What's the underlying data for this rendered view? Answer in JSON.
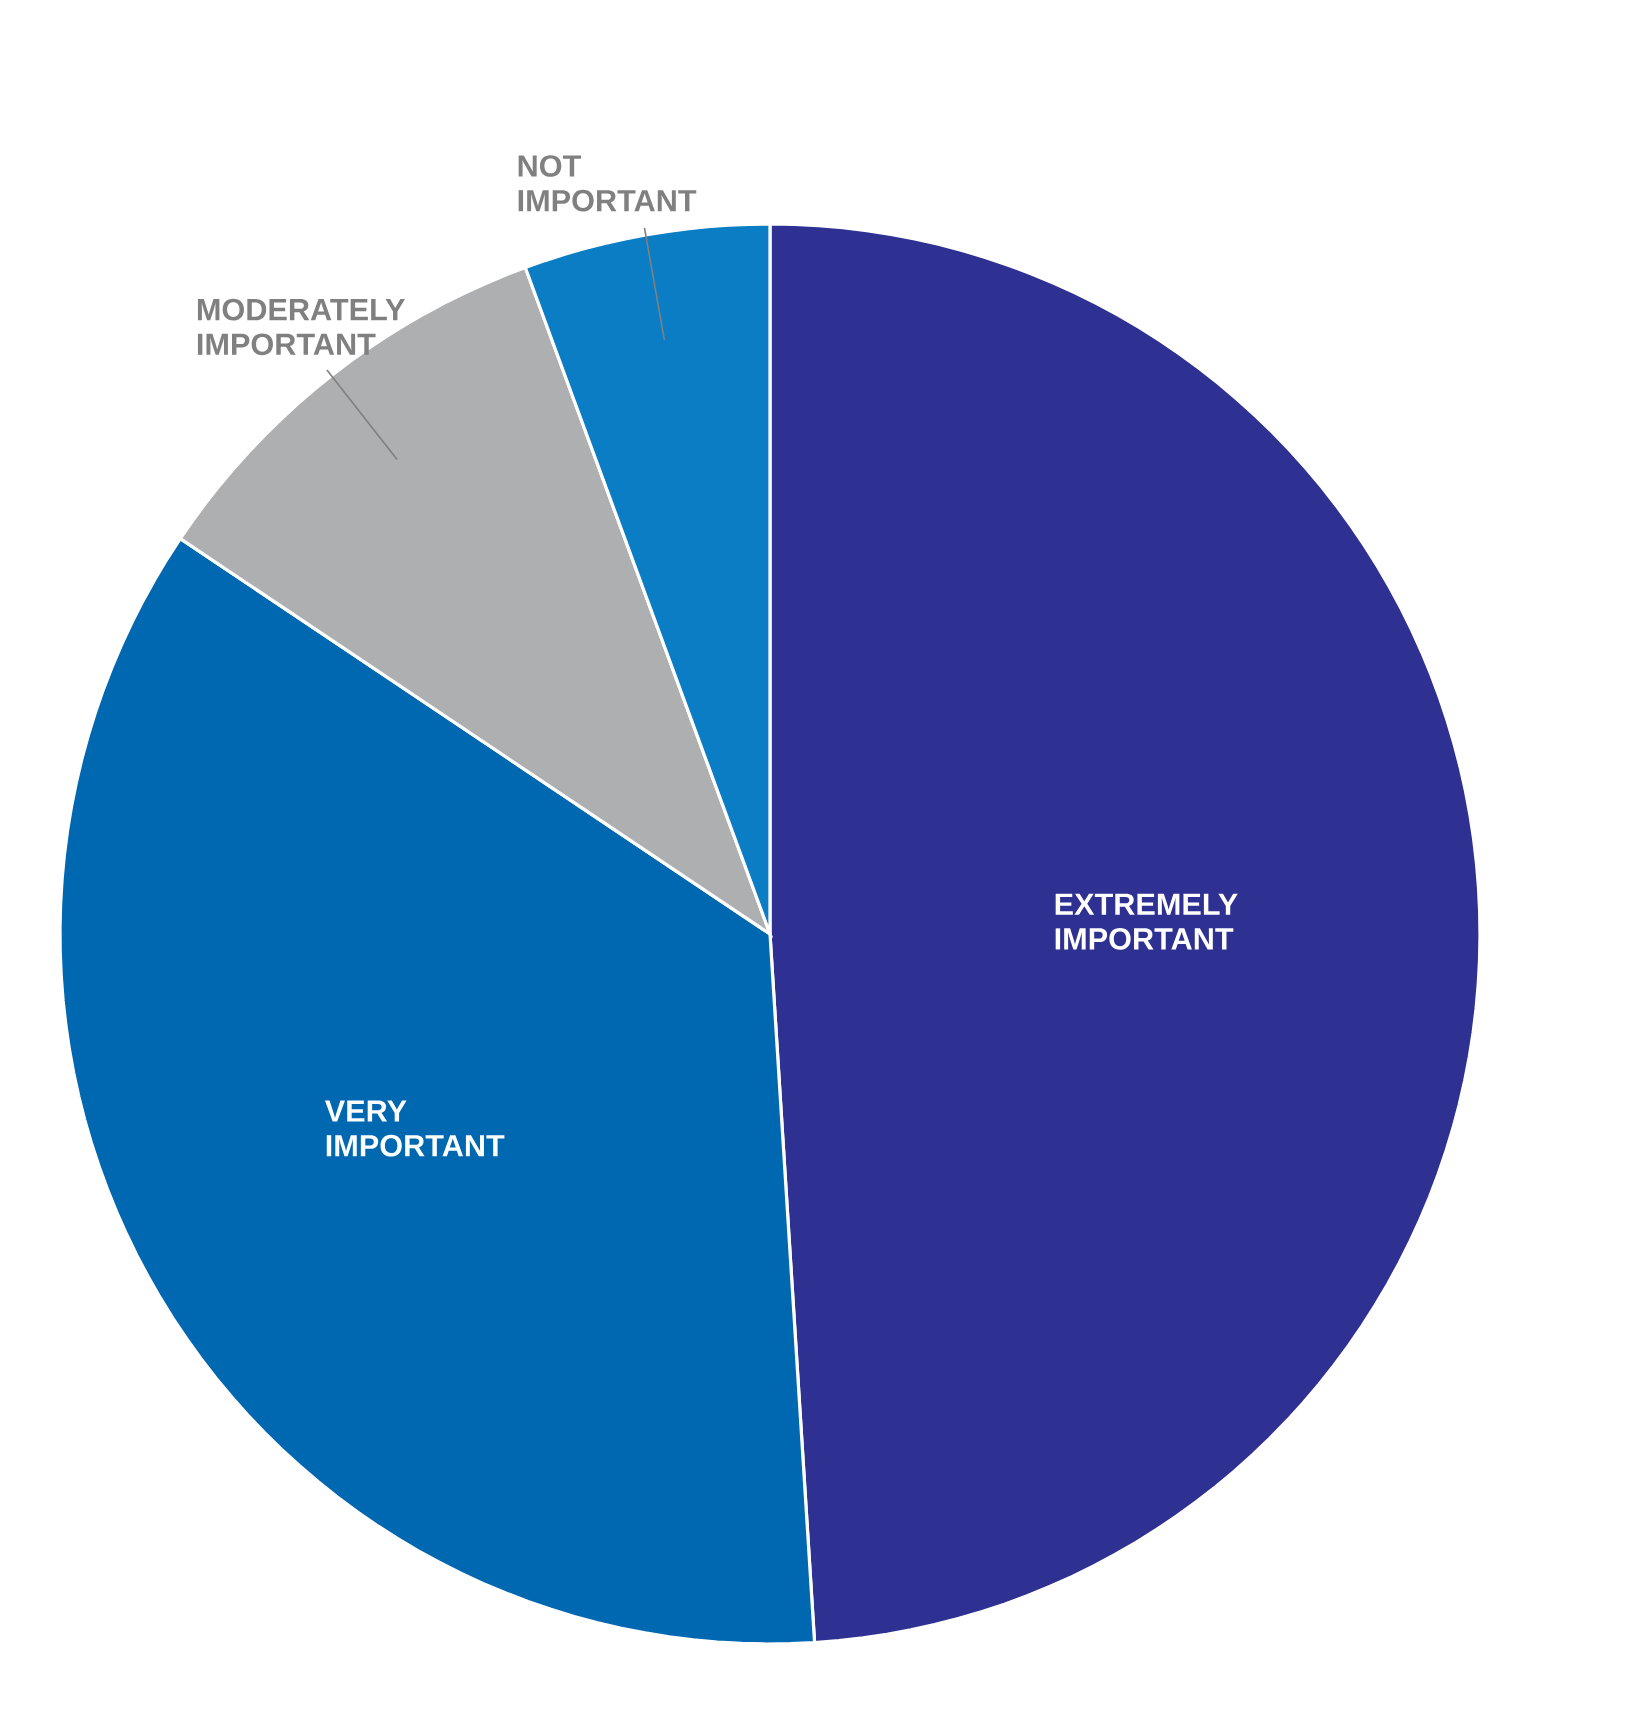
{
  "chart_data": {
    "type": "pie",
    "categories": [
      "EXTREMELY IMPORTANT",
      "VERY IMPORTANT",
      "MODERATELY IMPORTANT",
      "NOT IMPORTANT"
    ],
    "values": [
      49.0,
      35.4,
      10.0,
      5.6
    ],
    "colors": [
      "#2e3192",
      "#0067b1",
      "#adafb1",
      "#0a7dc4"
    ]
  }
}
